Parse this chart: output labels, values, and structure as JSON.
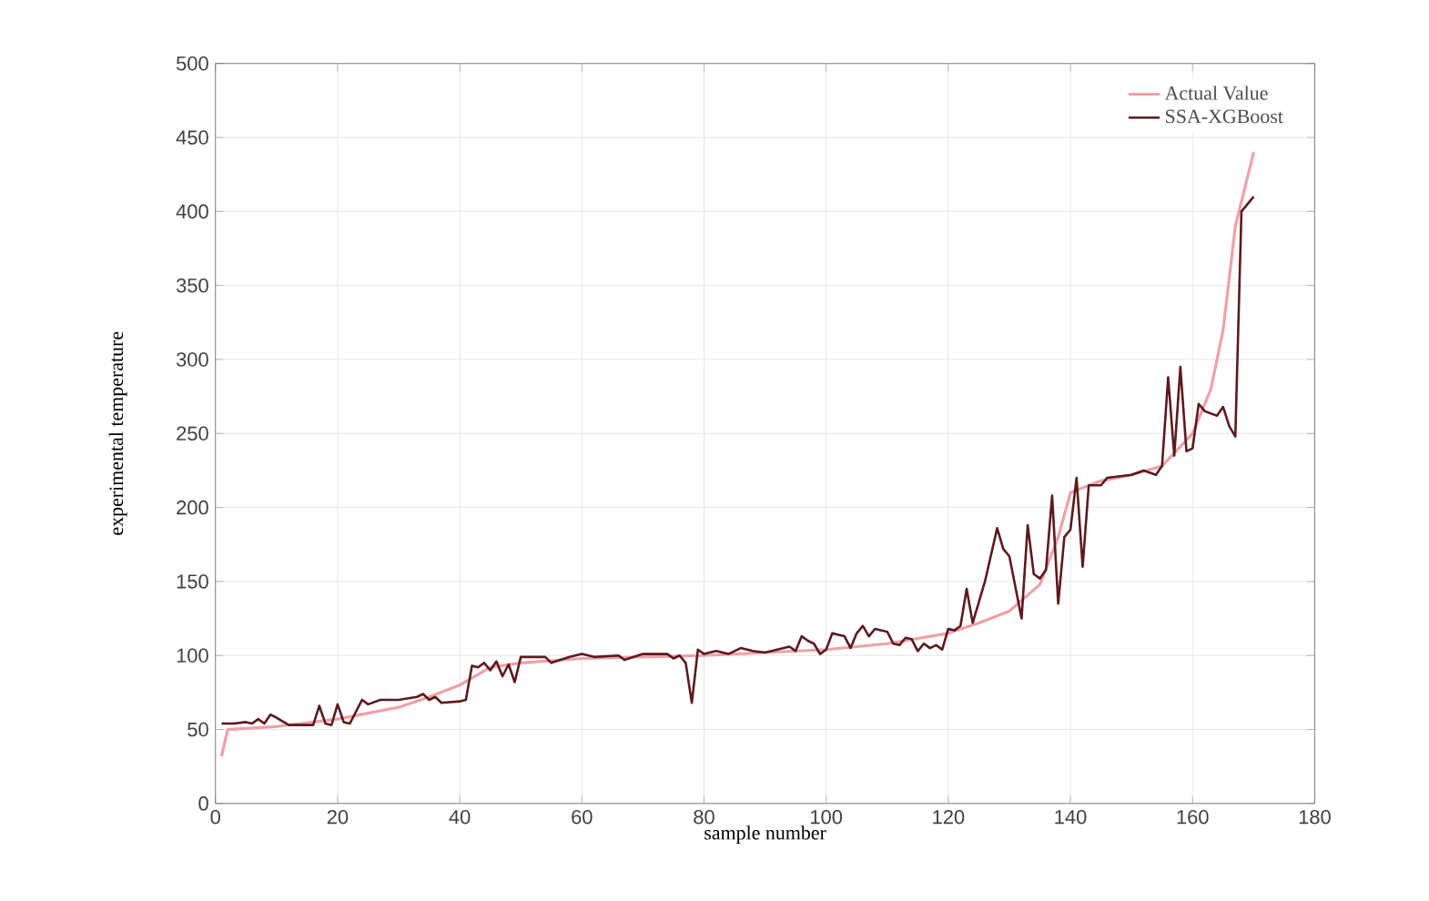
{
  "chart_data": {
    "type": "line",
    "xlabel": "sample number",
    "ylabel": "experimental temperature",
    "xlim": [
      0,
      180
    ],
    "ylim": [
      0,
      500
    ],
    "xticks": [
      0,
      20,
      40,
      60,
      80,
      100,
      120,
      140,
      160,
      180
    ],
    "yticks": [
      0,
      50,
      100,
      150,
      200,
      250,
      300,
      350,
      400,
      450,
      500
    ],
    "grid": true,
    "legend": "top right",
    "marker": "none",
    "line_style": "solid",
    "series": [
      {
        "name": "Actual Value",
        "color": "#f0a0a8",
        "x": [
          1,
          2,
          10,
          20,
          30,
          35,
          40,
          45,
          50,
          60,
          80,
          100,
          110,
          120,
          125,
          130,
          135,
          138,
          140,
          145,
          150,
          155,
          160,
          163,
          165,
          167,
          170
        ],
        "values": [
          32,
          50,
          52,
          57,
          65,
          72,
          80,
          92,
          95,
          98,
          100,
          104,
          108,
          115,
          122,
          130,
          148,
          180,
          210,
          218,
          222,
          228,
          250,
          280,
          320,
          390,
          440
        ]
      },
      {
        "name": "SSA-XGBoost",
        "color": "#5c1a1e",
        "x": [
          1,
          3,
          5,
          6,
          7,
          8,
          9,
          10,
          12,
          16,
          17,
          18,
          19,
          20,
          21,
          22,
          24,
          25,
          27,
          30,
          33,
          34,
          35,
          36,
          37,
          40,
          41,
          42,
          43,
          44,
          45,
          46,
          47,
          48,
          49,
          50,
          54,
          55,
          58,
          60,
          62,
          66,
          67,
          70,
          74,
          75,
          76,
          77,
          78,
          79,
          80,
          82,
          84,
          86,
          88,
          90,
          94,
          95,
          96,
          97,
          98,
          99,
          100,
          101,
          102,
          103,
          104,
          105,
          106,
          107,
          108,
          110,
          111,
          112,
          113,
          114,
          115,
          116,
          117,
          118,
          119,
          120,
          121,
          122,
          123,
          124,
          126,
          128,
          129,
          130,
          132,
          133,
          134,
          135,
          136,
          137,
          138,
          139,
          140,
          141,
          142,
          143,
          145,
          146,
          150,
          152,
          154,
          155,
          156,
          157,
          158,
          159,
          160,
          161,
          162,
          164,
          165,
          166,
          167,
          168,
          170
        ],
        "values": [
          54,
          54,
          55,
          54,
          57,
          54,
          60,
          58,
          53,
          53,
          66,
          54,
          53,
          67,
          55,
          54,
          70,
          67,
          70,
          70,
          72,
          74,
          70,
          72,
          68,
          69,
          70,
          93,
          92,
          95,
          90,
          96,
          86,
          94,
          82,
          99,
          99,
          95,
          99,
          101,
          99,
          100,
          97,
          101,
          101,
          98,
          100,
          95,
          68,
          104,
          101,
          103,
          101,
          105,
          103,
          102,
          106,
          103,
          113,
          110,
          108,
          101,
          104,
          115,
          114,
          113,
          105,
          115,
          120,
          113,
          118,
          116,
          108,
          107,
          112,
          111,
          103,
          108,
          105,
          107,
          104,
          118,
          117,
          120,
          145,
          122,
          150,
          186,
          172,
          167,
          125,
          188,
          155,
          152,
          158,
          208,
          135,
          180,
          185,
          220,
          160,
          215,
          215,
          220,
          222,
          225,
          222,
          228,
          288,
          235,
          295,
          238,
          240,
          270,
          265,
          262,
          268,
          255,
          248,
          400,
          410
        ]
      }
    ]
  }
}
